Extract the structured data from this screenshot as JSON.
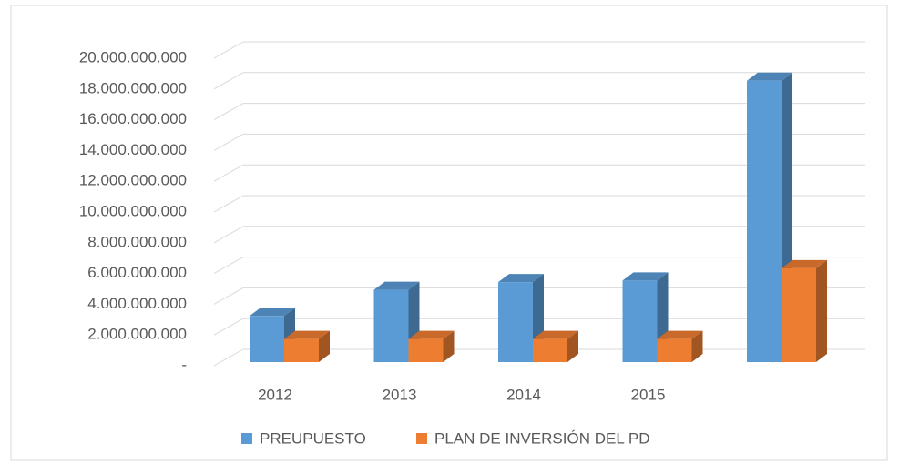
{
  "chart_data": {
    "type": "bar3d",
    "categories": [
      "2012",
      "2013",
      "2014",
      "2015",
      null
    ],
    "series": [
      {
        "name": "PREUPUESTO",
        "color": "#5b9bd5",
        "values": [
          3000000000,
          4700000000,
          5200000000,
          5300000000,
          18300000000
        ]
      },
      {
        "name": "PLAN DE INVERSIÓN DEL PD",
        "color": "#ed7d31",
        "values": [
          1500000000,
          1500000000,
          1500000000,
          1500000000,
          6100000000
        ]
      }
    ],
    "ylim": [
      0,
      20000000000
    ],
    "yticks": [
      {
        "value": 0,
        "label": "-"
      },
      {
        "value": 2000000000,
        "label": "2.000.000.000"
      },
      {
        "value": 4000000000,
        "label": "4.000.000.000"
      },
      {
        "value": 6000000000,
        "label": "6.000.000.000"
      },
      {
        "value": 8000000000,
        "label": "8.000.000.000"
      },
      {
        "value": 10000000000,
        "label": "10.000.000.000"
      },
      {
        "value": 12000000000,
        "label": "12.000.000.000"
      },
      {
        "value": 14000000000,
        "label": "14.000.000.000"
      },
      {
        "value": 16000000000,
        "label": "16.000.000.000"
      },
      {
        "value": 18000000000,
        "label": "18.000.000.000"
      },
      {
        "value": 20000000000,
        "label": "20.000.000.000"
      }
    ],
    "grid": true,
    "legend": "bottom"
  }
}
